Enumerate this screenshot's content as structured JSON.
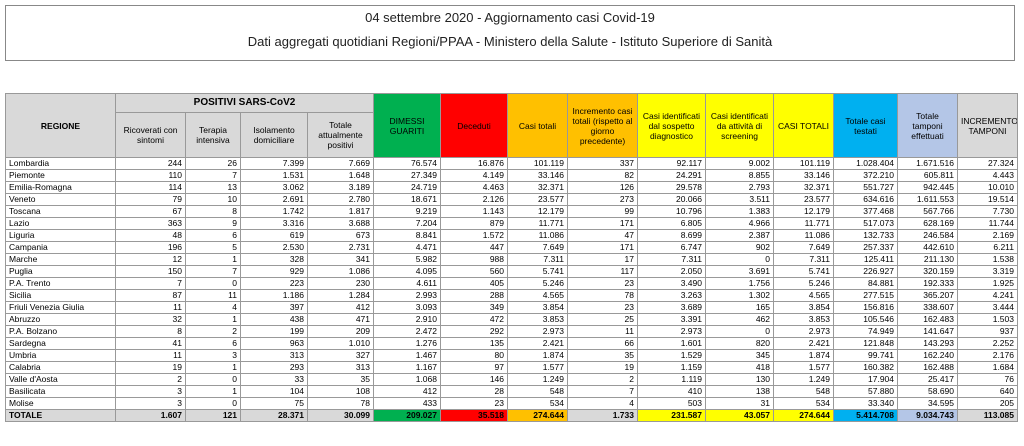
{
  "header": {
    "title": "04 settembre 2020 - Aggiornamento casi Covid-19",
    "subtitle": "Dati aggregati quotidiani Regioni/PPAA - Ministero della Salute - Istituto Superiore di Sanità"
  },
  "table": {
    "group_header": "POSITIVI SARS-CoV2",
    "columns": [
      "REGIONE",
      "Ricoverati con sintomi",
      "Terapia intensiva",
      "Isolamento domiciliare",
      "Totale attualmente positivi",
      "DIMESSI GUARITI",
      "Deceduti",
      "Casi totali",
      "Incremento casi totali (rispetto al giorno precedente)",
      "Casi identificati dal sospetto diagnostico",
      "Casi identificati da attività di screening",
      "CASI TOTALI",
      "Totale casi testati",
      "Totale tamponi effettuati",
      "INCREMENTO TAMPONI"
    ],
    "rows": [
      [
        "Lombardia",
        "244",
        "26",
        "7.399",
        "7.669",
        "76.574",
        "16.876",
        "101.119",
        "337",
        "92.117",
        "9.002",
        "101.119",
        "1.028.404",
        "1.671.516",
        "27.324"
      ],
      [
        "Piemonte",
        "110",
        "7",
        "1.531",
        "1.648",
        "27.349",
        "4.149",
        "33.146",
        "82",
        "24.291",
        "8.855",
        "33.146",
        "372.210",
        "605.811",
        "4.443"
      ],
      [
        "Emilia-Romagna",
        "114",
        "13",
        "3.062",
        "3.189",
        "24.719",
        "4.463",
        "32.371",
        "126",
        "29.578",
        "2.793",
        "32.371",
        "551.727",
        "942.445",
        "10.010"
      ],
      [
        "Veneto",
        "79",
        "10",
        "2.691",
        "2.780",
        "18.671",
        "2.126",
        "23.577",
        "273",
        "20.066",
        "3.511",
        "23.577",
        "634.616",
        "1.611.553",
        "19.514"
      ],
      [
        "Toscana",
        "67",
        "8",
        "1.742",
        "1.817",
        "9.219",
        "1.143",
        "12.179",
        "99",
        "10.796",
        "1.383",
        "12.179",
        "377.468",
        "567.766",
        "7.730"
      ],
      [
        "Lazio",
        "363",
        "9",
        "3.316",
        "3.688",
        "7.204",
        "879",
        "11.771",
        "171",
        "6.805",
        "4.966",
        "11.771",
        "517.073",
        "628.169",
        "11.744"
      ],
      [
        "Liguria",
        "48",
        "6",
        "619",
        "673",
        "8.841",
        "1.572",
        "11.086",
        "47",
        "8.699",
        "2.387",
        "11.086",
        "132.733",
        "246.584",
        "2.169"
      ],
      [
        "Campania",
        "196",
        "5",
        "2.530",
        "2.731",
        "4.471",
        "447",
        "7.649",
        "171",
        "6.747",
        "902",
        "7.649",
        "257.337",
        "442.610",
        "6.211"
      ],
      [
        "Marche",
        "12",
        "1",
        "328",
        "341",
        "5.982",
        "988",
        "7.311",
        "17",
        "7.311",
        "0",
        "7.311",
        "125.411",
        "211.130",
        "1.538"
      ],
      [
        "Puglia",
        "150",
        "7",
        "929",
        "1.086",
        "4.095",
        "560",
        "5.741",
        "117",
        "2.050",
        "3.691",
        "5.741",
        "226.927",
        "320.159",
        "3.319"
      ],
      [
        "P.A. Trento",
        "7",
        "0",
        "223",
        "230",
        "4.611",
        "405",
        "5.246",
        "23",
        "3.490",
        "1.756",
        "5.246",
        "84.881",
        "192.333",
        "1.925"
      ],
      [
        "Sicilia",
        "87",
        "11",
        "1.186",
        "1.284",
        "2.993",
        "288",
        "4.565",
        "78",
        "3.263",
        "1.302",
        "4.565",
        "277.515",
        "365.207",
        "4.241"
      ],
      [
        "Friuli Venezia Giulia",
        "11",
        "4",
        "397",
        "412",
        "3.093",
        "349",
        "3.854",
        "23",
        "3.689",
        "165",
        "3.854",
        "156.816",
        "338.607",
        "3.444"
      ],
      [
        "Abruzzo",
        "32",
        "1",
        "438",
        "471",
        "2.910",
        "472",
        "3.853",
        "25",
        "3.391",
        "462",
        "3.853",
        "105.546",
        "162.483",
        "1.503"
      ],
      [
        "P.A. Bolzano",
        "8",
        "2",
        "199",
        "209",
        "2.472",
        "292",
        "2.973",
        "11",
        "2.973",
        "0",
        "2.973",
        "74.949",
        "141.647",
        "937"
      ],
      [
        "Sardegna",
        "41",
        "6",
        "963",
        "1.010",
        "1.276",
        "135",
        "2.421",
        "66",
        "1.601",
        "820",
        "2.421",
        "121.848",
        "143.293",
        "2.252"
      ],
      [
        "Umbria",
        "11",
        "3",
        "313",
        "327",
        "1.467",
        "80",
        "1.874",
        "35",
        "1.529",
        "345",
        "1.874",
        "99.741",
        "162.240",
        "2.176"
      ],
      [
        "Calabria",
        "19",
        "1",
        "293",
        "313",
        "1.167",
        "97",
        "1.577",
        "19",
        "1.159",
        "418",
        "1.577",
        "160.382",
        "162.488",
        "1.684"
      ],
      [
        "Valle d'Aosta",
        "2",
        "0",
        "33",
        "35",
        "1.068",
        "146",
        "1.249",
        "2",
        "1.119",
        "130",
        "1.249",
        "17.904",
        "25.417",
        "76"
      ],
      [
        "Basilicata",
        "3",
        "1",
        "104",
        "108",
        "412",
        "28",
        "548",
        "7",
        "410",
        "138",
        "548",
        "57.880",
        "58.690",
        "640"
      ],
      [
        "Molise",
        "3",
        "0",
        "75",
        "78",
        "433",
        "23",
        "534",
        "4",
        "503",
        "31",
        "534",
        "33.340",
        "34.595",
        "205"
      ],
      [
        "TOTALE",
        "1.607",
        "121",
        "28.371",
        "30.099",
        "209.027",
        "35.518",
        "274.644",
        "1.733",
        "231.587",
        "43.057",
        "274.644",
        "5.414.708",
        "9.034.743",
        "113.085"
      ]
    ]
  }
}
